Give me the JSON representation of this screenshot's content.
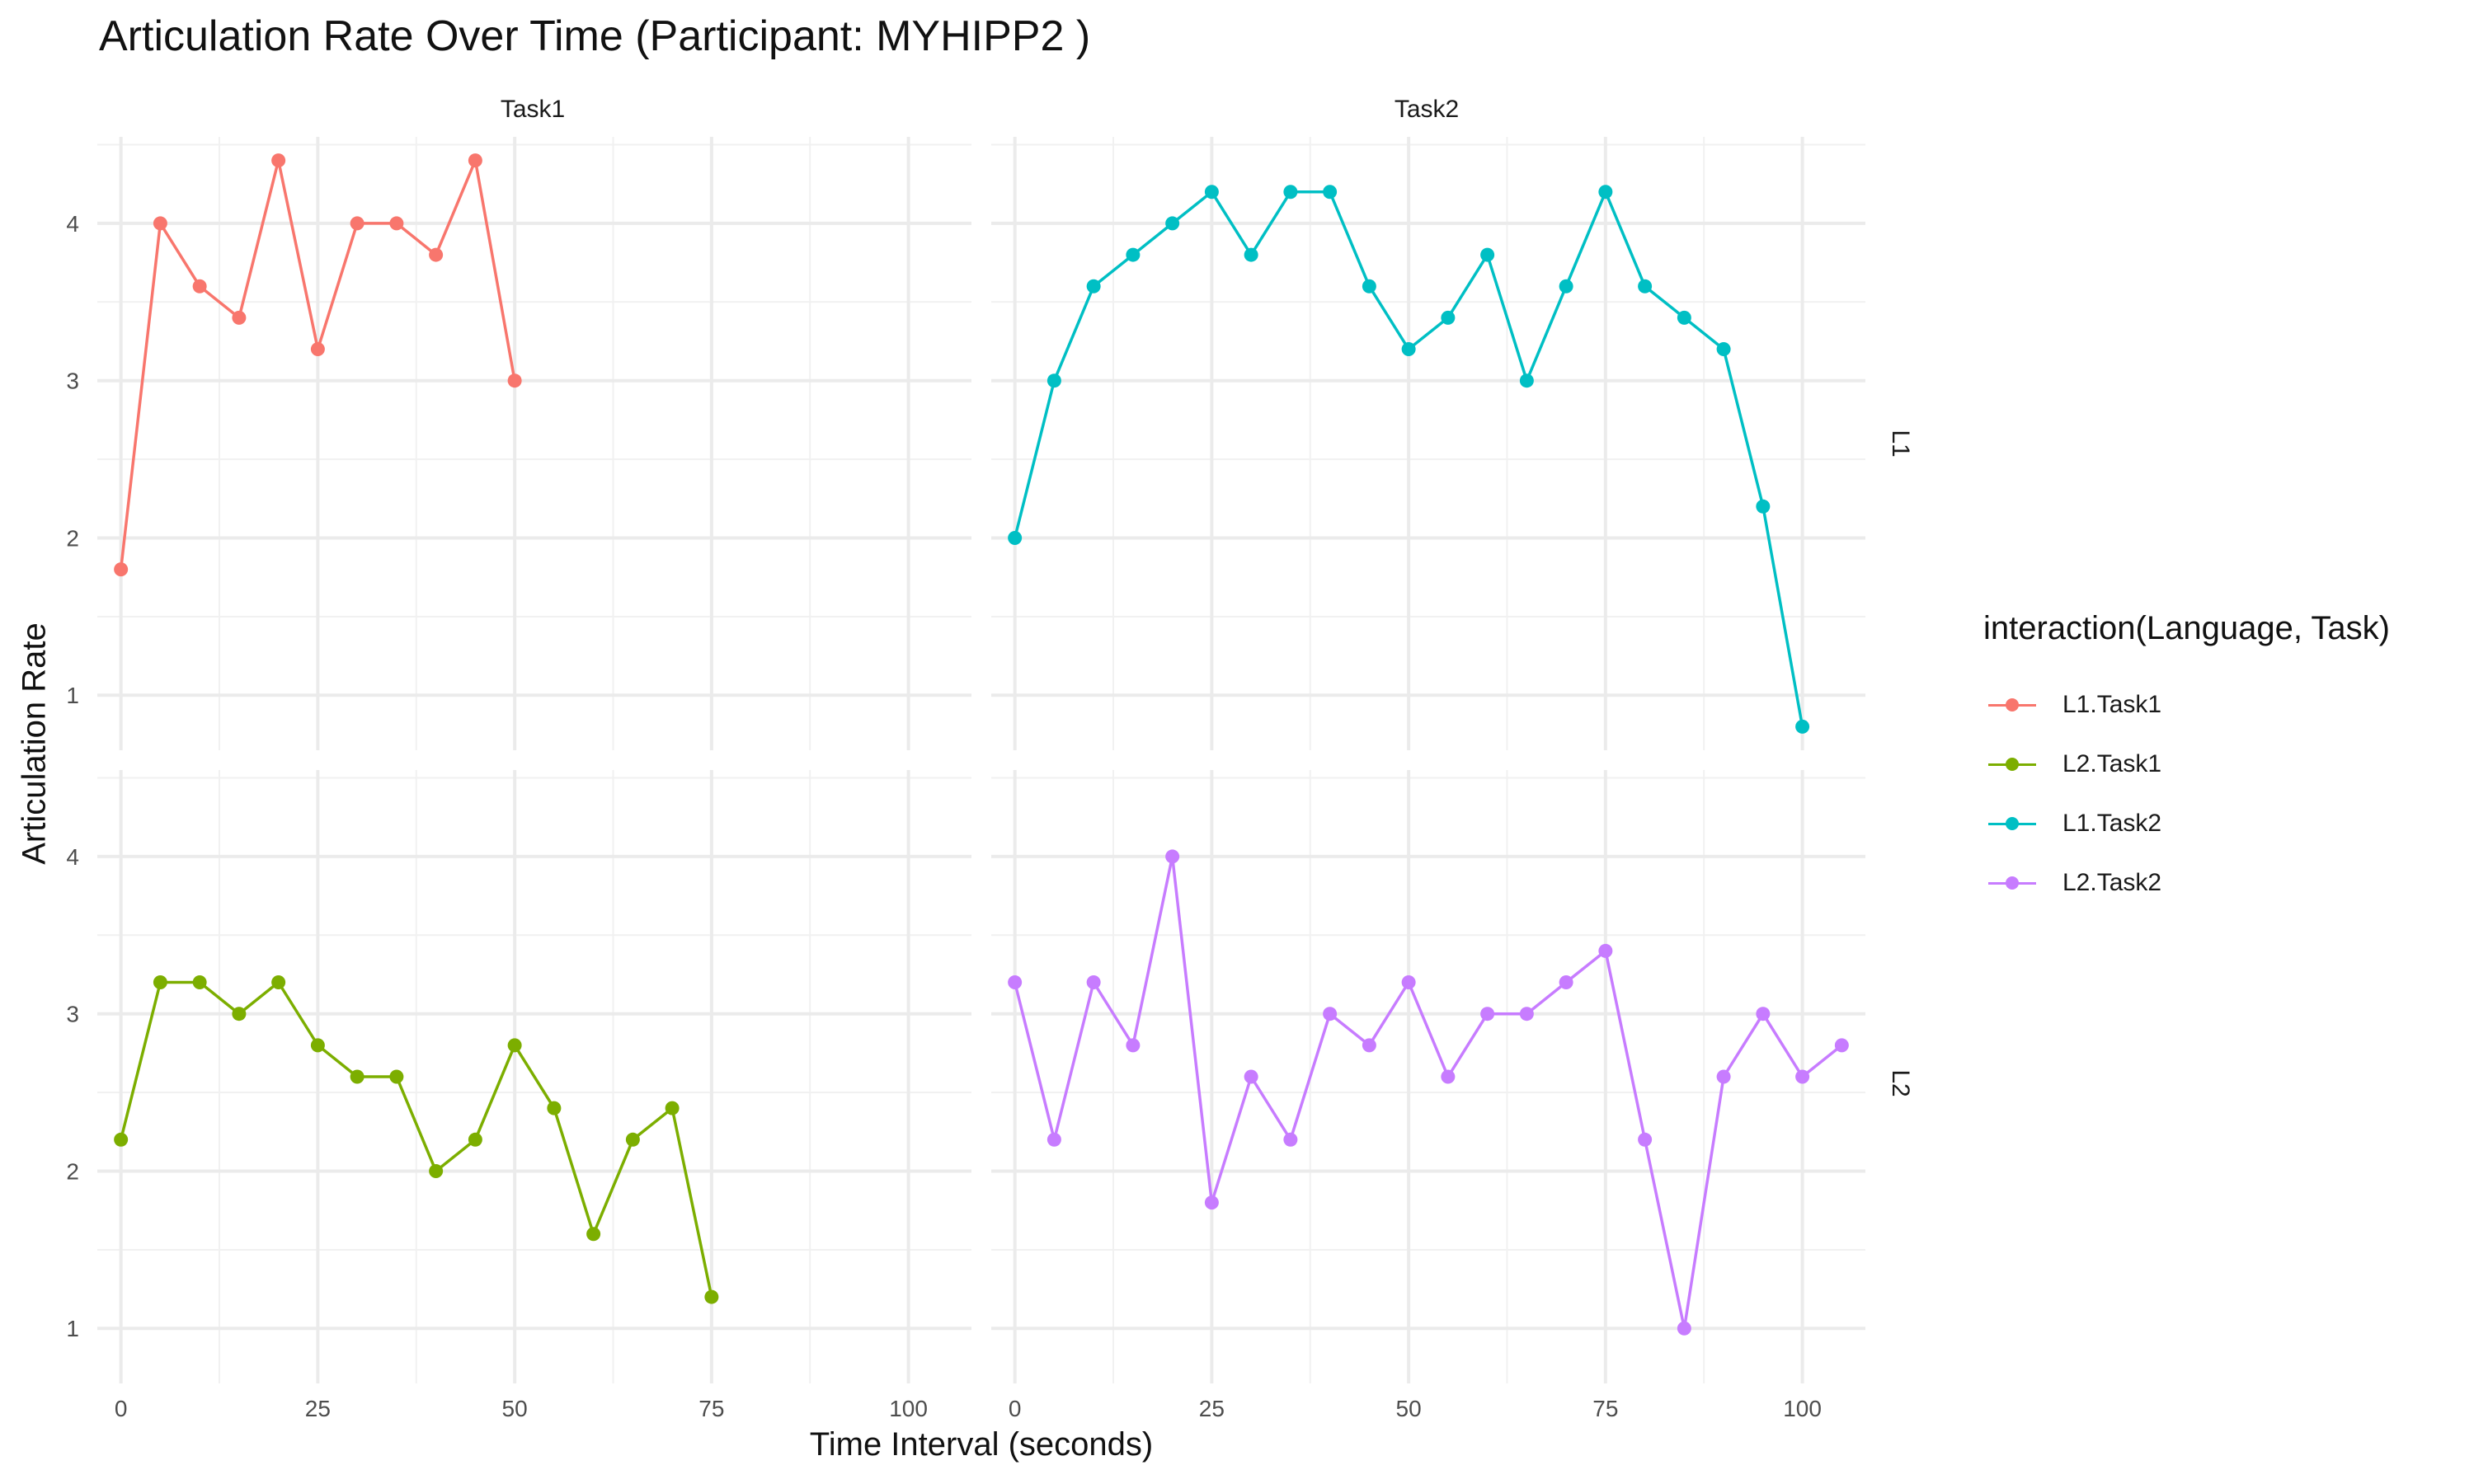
{
  "title": "Articulation Rate Over Time (Participant: MYHIPP2 )",
  "xlabel": "Time Interval (seconds)",
  "ylabel": "Articulation Rate",
  "columns": [
    "Task1",
    "Task2"
  ],
  "rows": [
    "L1",
    "L2"
  ],
  "legend": {
    "title": "interaction(Language, Task)",
    "items": [
      {
        "label": "L1.Task1",
        "color": "#F8766D"
      },
      {
        "label": "L2.Task1",
        "color": "#7CAE00"
      },
      {
        "label": "L1.Task2",
        "color": "#00BFC4"
      },
      {
        "label": "L2.Task2",
        "color": "#C77CFF"
      }
    ]
  },
  "chart_data": {
    "type": "line",
    "facets": "rows: Language, columns: Task",
    "xlim": [
      -3,
      108
    ],
    "ylim": [
      0.65,
      4.55
    ],
    "x_ticks": [
      0,
      25,
      50,
      75,
      100
    ],
    "y_ticks": [
      1,
      2,
      3,
      4
    ],
    "grid": true,
    "legend_position": "right",
    "series": [
      {
        "name": "L1.Task1",
        "panel_row": "L1",
        "panel_col": "Task1",
        "color": "#F8766D",
        "x": [
          0,
          5,
          10,
          15,
          20,
          25,
          30,
          35,
          40,
          45,
          50
        ],
        "y": [
          1.8,
          4.0,
          3.6,
          3.4,
          4.4,
          3.2,
          4.0,
          4.0,
          3.8,
          4.4,
          3.0
        ]
      },
      {
        "name": "L1.Task2",
        "panel_row": "L1",
        "panel_col": "Task2",
        "color": "#00BFC4",
        "x": [
          0,
          5,
          10,
          15,
          20,
          25,
          30,
          35,
          40,
          45,
          50,
          55,
          60,
          65,
          70,
          75,
          80,
          85,
          90,
          95,
          100
        ],
        "y": [
          2.0,
          3.0,
          3.6,
          3.8,
          4.0,
          4.2,
          3.8,
          4.2,
          4.2,
          3.6,
          3.2,
          3.4,
          3.8,
          3.0,
          3.6,
          4.2,
          3.6,
          3.4,
          3.2,
          2.2,
          0.8
        ]
      },
      {
        "name": "L2.Task1",
        "panel_row": "L2",
        "panel_col": "Task1",
        "color": "#7CAE00",
        "x": [
          0,
          5,
          10,
          15,
          20,
          25,
          30,
          35,
          40,
          45,
          50,
          55,
          60,
          65,
          70,
          75
        ],
        "y": [
          2.2,
          3.2,
          3.2,
          3.0,
          3.2,
          2.8,
          2.6,
          2.6,
          2.0,
          2.2,
          2.8,
          2.4,
          1.6,
          2.2,
          2.4,
          1.2
        ]
      },
      {
        "name": "L2.Task2",
        "panel_row": "L2",
        "panel_col": "Task2",
        "color": "#C77CFF",
        "x": [
          0,
          5,
          10,
          15,
          20,
          25,
          30,
          35,
          40,
          45,
          50,
          55,
          60,
          65,
          70,
          75,
          80,
          85,
          90,
          95,
          100,
          105
        ],
        "y": [
          3.2,
          2.2,
          3.2,
          2.8,
          4.0,
          1.8,
          2.6,
          2.2,
          3.0,
          2.8,
          3.2,
          2.6,
          3.0,
          3.0,
          3.2,
          3.4,
          2.2,
          1.0,
          2.6,
          3.0,
          2.6,
          2.8
        ]
      }
    ]
  }
}
